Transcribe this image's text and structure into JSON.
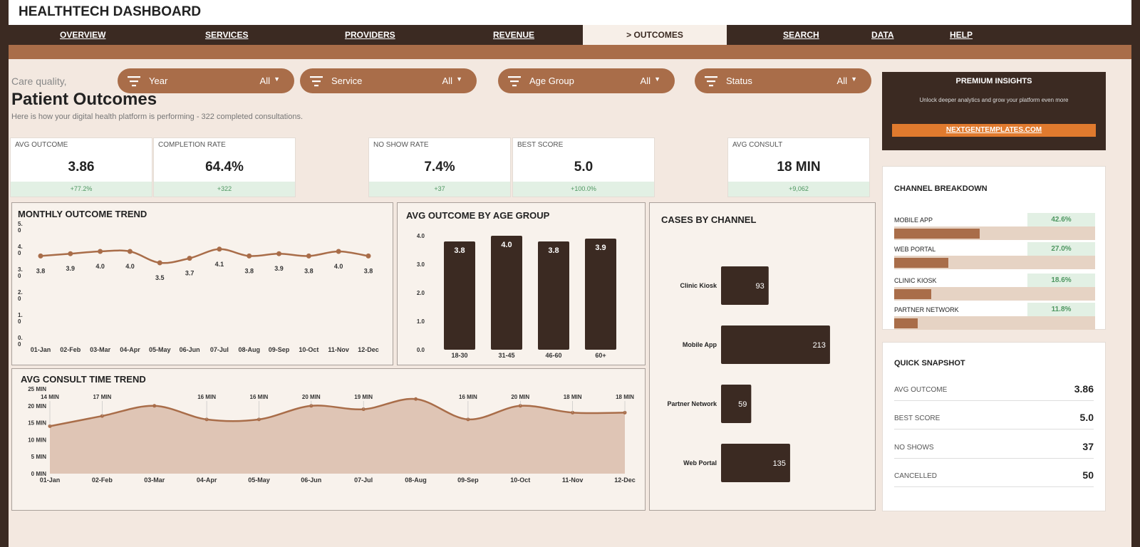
{
  "app_title": "HEALTHTECH DASHBOARD",
  "nav": [
    {
      "label": "OVERVIEW",
      "active": false
    },
    {
      "label": "SERVICES",
      "active": false
    },
    {
      "label": "PROVIDERS",
      "active": false
    },
    {
      "label": "REVENUE",
      "active": false
    },
    {
      "label": "> OUTCOMES",
      "active": true
    },
    {
      "label": "SEARCH",
      "active": false
    },
    {
      "label": "DATA",
      "active": false
    },
    {
      "label": "HELP",
      "active": false
    }
  ],
  "page": {
    "eyebrow": "Care quality,",
    "title": "Patient Outcomes",
    "subtitle": "Here is how your digital health platform is performing  -  322 completed consultations."
  },
  "filters": [
    {
      "label": "Year",
      "value": "All"
    },
    {
      "label": "Service",
      "value": "All"
    },
    {
      "label": "Age Group",
      "value": "All"
    },
    {
      "label": "Status",
      "value": "All"
    }
  ],
  "kpis": [
    {
      "label": "AVG OUTCOME",
      "value": "3.86",
      "delta": "+77.2%"
    },
    {
      "label": "COMPLETION RATE",
      "value": "64.4%",
      "delta": "+322"
    },
    {
      "label": "NO SHOW RATE",
      "value": "7.4%",
      "delta": "+37"
    },
    {
      "label": "BEST SCORE",
      "value": "5.0",
      "delta": "+100.0%"
    },
    {
      "label": "AVG CONSULT",
      "value": "18 MIN",
      "delta": "+9,062"
    }
  ],
  "premium": {
    "title": "PREMIUM INSIGHTS",
    "text": "Unlock deeper analytics and grow your platform even more",
    "button": "NEXTGENTEMPLATES.COM"
  },
  "channel_breakdown": {
    "title": "CHANNEL BREAKDOWN",
    "items": [
      {
        "label": "MOBILE APP",
        "pct": "42.6%",
        "fraction": 0.426
      },
      {
        "label": "WEB PORTAL",
        "pct": "27.0%",
        "fraction": 0.27
      },
      {
        "label": "CLINIC KIOSK",
        "pct": "18.6%",
        "fraction": 0.186
      },
      {
        "label": "PARTNER NETWORK",
        "pct": "11.8%",
        "fraction": 0.118
      }
    ]
  },
  "snapshot": {
    "title": "QUICK SNAPSHOT",
    "items": [
      {
        "label": "AVG OUTCOME",
        "value": "3.86"
      },
      {
        "label": "BEST SCORE",
        "value": "5.0"
      },
      {
        "label": "NO SHOWS",
        "value": "37"
      },
      {
        "label": "CANCELLED",
        "value": "50"
      }
    ]
  },
  "colors": {
    "dark": "#3b2a22",
    "accent": "#a96d49",
    "area": "#dfc5b5",
    "positive": "#4d9660",
    "orange": "#e07a2e"
  },
  "chart_data": [
    {
      "type": "line",
      "title": "MONTHLY OUTCOME TREND",
      "x": [
        "01-Jan",
        "02-Feb",
        "03-Mar",
        "04-Apr",
        "05-May",
        "06-Jun",
        "07-Jul",
        "08-Aug",
        "09-Sep",
        "10-Oct",
        "11-Nov",
        "12-Dec"
      ],
      "values": [
        3.8,
        3.9,
        4.0,
        4.0,
        3.5,
        3.7,
        4.1,
        3.8,
        3.9,
        3.8,
        4.0,
        3.8
      ],
      "y_ticks": [
        "5.\n0",
        "4.\n0",
        "3.\n0",
        "2.\n0",
        "1.\n0",
        "0.\n0"
      ],
      "ylim": [
        0,
        5
      ]
    },
    {
      "type": "bar",
      "title": "AVG OUTCOME BY AGE GROUP",
      "categories": [
        "18-30",
        "31-45",
        "46-60",
        "60+"
      ],
      "values": [
        3.8,
        4.0,
        3.8,
        3.9
      ],
      "y_ticks": [
        "4.0",
        "3.0",
        "2.0",
        "1.0",
        "0.0"
      ],
      "ylim": [
        0,
        4
      ]
    },
    {
      "type": "area",
      "title": "AVG CONSULT TIME TREND",
      "x": [
        "01-Jan",
        "02-Feb",
        "03-Mar",
        "04-Apr",
        "05-May",
        "06-Jun",
        "07-Jul",
        "08-Aug",
        "09-Sep",
        "10-Oct",
        "11-Nov",
        "12-Dec"
      ],
      "values": [
        14,
        17,
        20,
        16,
        16,
        20,
        19,
        22,
        16,
        20,
        18,
        18
      ],
      "point_labels": [
        "14 MIN",
        "17 MIN",
        "",
        "16 MIN",
        "16 MIN",
        "20 MIN",
        "19 MIN",
        "",
        "16 MIN",
        "20 MIN",
        "18 MIN",
        "18 MIN"
      ],
      "y_ticks": [
        "25 MIN",
        "20 MIN",
        "15 MIN",
        "10 MIN",
        "5 MIN",
        "0 MIN"
      ],
      "ylim": [
        0,
        25
      ]
    },
    {
      "type": "bar",
      "orientation": "horizontal",
      "title": "CASES BY CHANNEL",
      "categories": [
        "Clinic Kiosk",
        "Mobile App",
        "Partner Network",
        "Web Portal"
      ],
      "values": [
        93,
        213,
        59,
        135
      ]
    }
  ]
}
